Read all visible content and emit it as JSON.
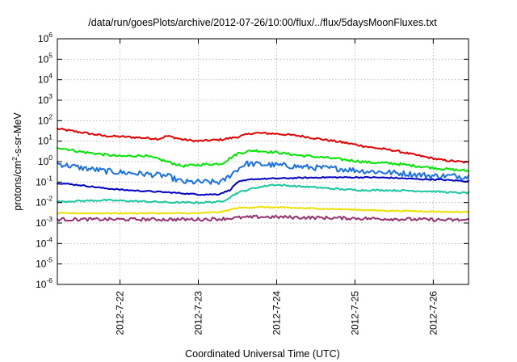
{
  "chart_data": {
    "type": "line",
    "title": "/data/run/goesPlots/archive/2012-07-26/10:00/flux/../flux/5daysMoonFluxes.txt",
    "xlabel": "Coordinated Universal Time (UTC)",
    "ylabel": {
      "base": "protons/cm",
      "exp": "2",
      "rest": "-s-sr-MeV"
    },
    "yscale": "log",
    "ylim_exp": [
      -6,
      6
    ],
    "ytick_base": "10",
    "yticks_exp": [
      "-6",
      "-5",
      "-4",
      "-3",
      "-2",
      "-1",
      "0",
      "1",
      "2",
      "3",
      "4",
      "5",
      "6"
    ],
    "xlim_days": [
      21.2,
      26.45
    ],
    "xticks": [
      {
        "label": "2012-7-22",
        "day": 22
      },
      {
        "label": "2012-7-23",
        "day": 23
      },
      {
        "label": "2012-7-24",
        "day": 24
      },
      {
        "label": "2012-7-25",
        "day": 25
      },
      {
        "label": "2012-7-26",
        "day": 26
      }
    ],
    "grid": true,
    "series": [
      {
        "color": "#e80000",
        "noise": 0.05,
        "points": [
          [
            21.2,
            40
          ],
          [
            21.5,
            27
          ],
          [
            21.8,
            18
          ],
          [
            22.1,
            16
          ],
          [
            22.5,
            13
          ],
          [
            22.6,
            18
          ],
          [
            22.8,
            12
          ],
          [
            23.0,
            10
          ],
          [
            23.3,
            12
          ],
          [
            23.5,
            16
          ],
          [
            23.7,
            25
          ],
          [
            24.0,
            23
          ],
          [
            24.3,
            18
          ],
          [
            24.6,
            12
          ],
          [
            24.9,
            8
          ],
          [
            25.2,
            5
          ],
          [
            25.5,
            3.5
          ],
          [
            25.8,
            2
          ],
          [
            26.1,
            1.2
          ],
          [
            26.45,
            0.9
          ]
        ]
      },
      {
        "color": "#00e800",
        "noise": 0.06,
        "points": [
          [
            21.2,
            5
          ],
          [
            21.5,
            3
          ],
          [
            21.8,
            2.2
          ],
          [
            22.0,
            1.8
          ],
          [
            22.3,
            2
          ],
          [
            22.5,
            1.3
          ],
          [
            22.6,
            1
          ],
          [
            22.8,
            0.6
          ],
          [
            23.0,
            0.7
          ],
          [
            23.3,
            0.8
          ],
          [
            23.5,
            2.5
          ],
          [
            23.7,
            3.5
          ],
          [
            24.0,
            2.8
          ],
          [
            24.3,
            2
          ],
          [
            24.6,
            1.6
          ],
          [
            24.9,
            1.2
          ],
          [
            25.2,
            0.9
          ],
          [
            25.5,
            0.8
          ],
          [
            25.8,
            0.6
          ],
          [
            26.1,
            0.45
          ],
          [
            26.45,
            0.35
          ]
        ]
      },
      {
        "color": "#1a70e8",
        "noise": 0.14,
        "points": [
          [
            21.2,
            0.8
          ],
          [
            21.5,
            0.5
          ],
          [
            21.8,
            0.35
          ],
          [
            22.0,
            0.3
          ],
          [
            22.3,
            0.25
          ],
          [
            22.6,
            0.2
          ],
          [
            22.8,
            0.1
          ],
          [
            23.0,
            0.1
          ],
          [
            23.3,
            0.1
          ],
          [
            23.45,
            0.3
          ],
          [
            23.6,
            0.8
          ],
          [
            23.9,
            0.7
          ],
          [
            24.2,
            0.6
          ],
          [
            24.5,
            0.5
          ],
          [
            24.8,
            0.45
          ],
          [
            25.1,
            0.35
          ],
          [
            25.4,
            0.3
          ],
          [
            25.7,
            0.25
          ],
          [
            26.0,
            0.2
          ],
          [
            26.3,
            0.2
          ],
          [
            26.45,
            0.18
          ]
        ]
      },
      {
        "color": "#0000c8",
        "noise": 0.03,
        "points": [
          [
            21.2,
            0.09
          ],
          [
            21.5,
            0.07
          ],
          [
            21.8,
            0.05
          ],
          [
            22.1,
            0.04
          ],
          [
            22.4,
            0.035
          ],
          [
            22.7,
            0.03
          ],
          [
            23.0,
            0.025
          ],
          [
            23.25,
            0.025
          ],
          [
            23.4,
            0.04
          ],
          [
            23.5,
            0.1
          ],
          [
            23.7,
            0.14
          ],
          [
            24.0,
            0.15
          ],
          [
            24.3,
            0.16
          ],
          [
            24.6,
            0.17
          ],
          [
            24.9,
            0.17
          ],
          [
            25.2,
            0.17
          ],
          [
            25.5,
            0.16
          ],
          [
            25.8,
            0.14
          ],
          [
            26.1,
            0.13
          ],
          [
            26.45,
            0.11
          ]
        ]
      },
      {
        "color": "#18c8a0",
        "noise": 0.04,
        "points": [
          [
            21.2,
            0.011
          ],
          [
            21.5,
            0.012
          ],
          [
            21.8,
            0.013
          ],
          [
            22.1,
            0.012
          ],
          [
            22.4,
            0.011
          ],
          [
            22.7,
            0.01
          ],
          [
            23.0,
            0.01
          ],
          [
            23.3,
            0.011
          ],
          [
            23.5,
            0.03
          ],
          [
            23.7,
            0.05
          ],
          [
            23.95,
            0.075
          ],
          [
            24.2,
            0.065
          ],
          [
            24.5,
            0.055
          ],
          [
            24.8,
            0.045
          ],
          [
            25.1,
            0.04
          ],
          [
            25.4,
            0.04
          ],
          [
            25.7,
            0.038
          ],
          [
            26.0,
            0.035
          ],
          [
            26.3,
            0.03
          ],
          [
            26.45,
            0.03
          ]
        ]
      },
      {
        "color": "#f0e000",
        "noise": 0.03,
        "points": [
          [
            21.2,
            0.003
          ],
          [
            21.6,
            0.003
          ],
          [
            22.0,
            0.003
          ],
          [
            22.5,
            0.003
          ],
          [
            23.0,
            0.003
          ],
          [
            23.3,
            0.0035
          ],
          [
            23.5,
            0.0055
          ],
          [
            23.8,
            0.006
          ],
          [
            24.2,
            0.0055
          ],
          [
            24.6,
            0.005
          ],
          [
            25.0,
            0.0045
          ],
          [
            25.4,
            0.004
          ],
          [
            25.8,
            0.0038
          ],
          [
            26.2,
            0.0035
          ],
          [
            26.45,
            0.0035
          ]
        ]
      },
      {
        "color": "#983070",
        "noise": 0.08,
        "points": [
          [
            21.2,
            0.0015
          ],
          [
            21.6,
            0.0015
          ],
          [
            22.0,
            0.0015
          ],
          [
            22.5,
            0.0015
          ],
          [
            23.0,
            0.0015
          ],
          [
            23.3,
            0.0016
          ],
          [
            23.5,
            0.0018
          ],
          [
            23.8,
            0.002
          ],
          [
            24.2,
            0.0019
          ],
          [
            24.6,
            0.0018
          ],
          [
            25.0,
            0.0017
          ],
          [
            25.4,
            0.0016
          ],
          [
            25.8,
            0.0015
          ],
          [
            26.2,
            0.0014
          ],
          [
            26.45,
            0.0014
          ]
        ]
      }
    ]
  }
}
